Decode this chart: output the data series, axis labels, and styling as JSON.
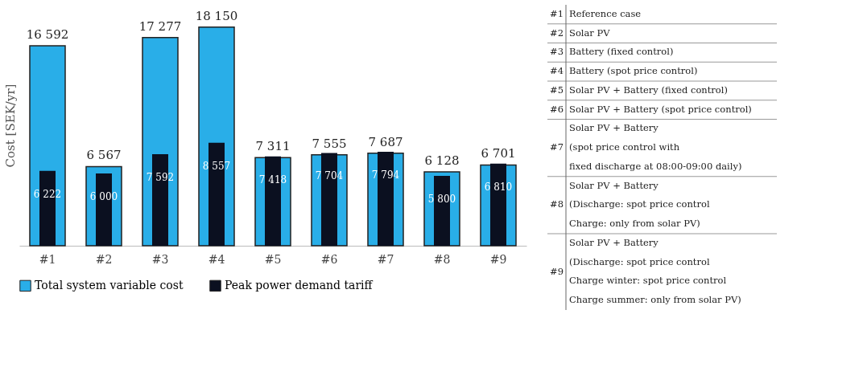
{
  "chart_data": {
    "type": "bar",
    "ylabel": "Cost [SEK/yr]",
    "categories": [
      "#1",
      "#2",
      "#3",
      "#4",
      "#5",
      "#6",
      "#7",
      "#8",
      "#9"
    ],
    "series": [
      {
        "name": "Total system variable cost",
        "color": "#29aee8",
        "values": [
          16592,
          6567,
          17277,
          18150,
          7311,
          7555,
          7687,
          6128,
          6701
        ],
        "value_labels": [
          "16 592",
          "6 567",
          "17 277",
          "18 150",
          "7 311",
          "7 555",
          "7 687",
          "6 128",
          "6 701"
        ]
      },
      {
        "name": "Peak power demand tariff",
        "color": "#0b1020",
        "values": [
          6222,
          6000,
          7592,
          8557,
          7418,
          7704,
          7794,
          5800,
          6810
        ],
        "value_labels": [
          "6 222",
          "6 000",
          "7 592",
          "8 557",
          "7 418",
          "7 704",
          "7 794",
          "5 800",
          "6 810"
        ]
      }
    ],
    "legend": "bottom",
    "grid": false,
    "annotations": [
      "#1 Reference case",
      "#2 Solar PV",
      "#3 Battery (fixed control)",
      "#4 Battery (spot price control)",
      "#5 Solar PV + Battery (fixed control)",
      "#6 Solar PV + Battery (spot price control)",
      "#7 Solar PV + Battery\n(spot price control with\nfixed discharge at 08:00-09:00 daily)",
      "#8 Solar PV + Battery\n(Discharge: spot price control\nCharge: only from solar PV)",
      "#9 Solar PV + Battery\n(Discharge: spot price control\nCharge winter: spot price control\nCharge summer: only from solar PV)"
    ]
  }
}
